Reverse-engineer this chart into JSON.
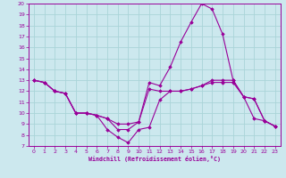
{
  "xlabel": "Windchill (Refroidissement éolien,°C)",
  "bg_color": "#cce8ee",
  "line_color": "#990099",
  "grid_color": "#aad4d8",
  "xlim": [
    -0.5,
    23.5
  ],
  "ylim": [
    7,
    20
  ],
  "xticks": [
    0,
    1,
    2,
    3,
    4,
    5,
    6,
    7,
    8,
    9,
    10,
    11,
    12,
    13,
    14,
    15,
    16,
    17,
    18,
    19,
    20,
    21,
    22,
    23
  ],
  "yticks": [
    7,
    8,
    9,
    10,
    11,
    12,
    13,
    14,
    15,
    16,
    17,
    18,
    19,
    20
  ],
  "series": [
    {
      "x": [
        0,
        1,
        2,
        3,
        4,
        5,
        6,
        7,
        8,
        9,
        10,
        11,
        12,
        13,
        14,
        15,
        16,
        17,
        18,
        19,
        20,
        21,
        22,
        23
      ],
      "y": [
        13,
        12.8,
        12,
        11.8,
        10,
        10,
        9.8,
        9.5,
        9.0,
        9.0,
        9.2,
        12.2,
        12.0,
        12.0,
        12.0,
        12.2,
        12.5,
        12.8,
        12.8,
        12.8,
        11.5,
        11.3,
        9.3,
        8.8
      ]
    },
    {
      "x": [
        0,
        1,
        2,
        3,
        4,
        5,
        6,
        7,
        8,
        9,
        10,
        11,
        12,
        13,
        14,
        15,
        16,
        17,
        18,
        19,
        20,
        21,
        22,
        23
      ],
      "y": [
        13,
        12.8,
        12,
        11.8,
        10,
        10,
        9.8,
        9.5,
        8.5,
        8.5,
        9.2,
        12.8,
        12.5,
        14.2,
        16.5,
        18.3,
        20.0,
        19.5,
        17.2,
        13.0,
        11.5,
        9.5,
        9.3,
        8.8
      ]
    },
    {
      "x": [
        0,
        1,
        2,
        3,
        4,
        5,
        6,
        7,
        8,
        9,
        10,
        11,
        12,
        13,
        14,
        15,
        16,
        17,
        18,
        19,
        20,
        21,
        22,
        23
      ],
      "y": [
        13,
        12.8,
        12,
        11.8,
        10,
        10,
        9.8,
        8.5,
        7.8,
        7.3,
        8.5,
        8.7,
        11.2,
        12.0,
        12.0,
        12.2,
        12.5,
        13.0,
        13.0,
        13.0,
        11.5,
        11.3,
        9.3,
        8.8
      ]
    }
  ]
}
